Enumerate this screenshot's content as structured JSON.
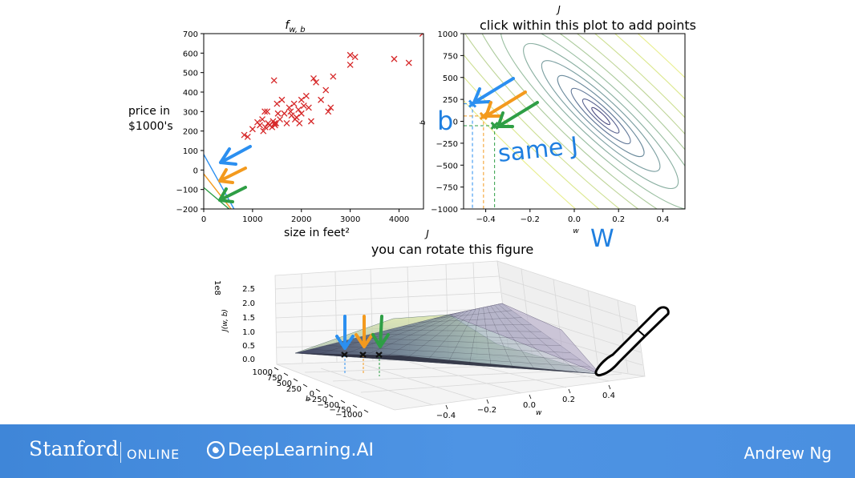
{
  "plot_scatter": {
    "title": "f",
    "title_sub": "w, b",
    "xlabel": "size in feet²",
    "ylabel_line1": "price in",
    "ylabel_line2": "$1000's",
    "xticks": [
      "0",
      "1000",
      "2000",
      "3000",
      "4000"
    ],
    "yticks": [
      "700",
      "600",
      "500",
      "400",
      "300",
      "200",
      "100",
      "0",
      "−100",
      "−200"
    ]
  },
  "plot_contour": {
    "title_j": "J",
    "title": "click within this plot to add points",
    "xlabel": "w",
    "ylabel": "b",
    "xticks": [
      "−0.4",
      "−0.2",
      "0.0",
      "0.2",
      "0.4"
    ],
    "yticks": [
      "1000",
      "750",
      "500",
      "250",
      "0",
      "−250",
      "−500",
      "−750",
      "−1000"
    ]
  },
  "plot_surface": {
    "title_j": "J",
    "title": "you can rotate this figure",
    "zlabel": "J(w, b)",
    "zscale": "1e8",
    "zticks": [
      "2.5",
      "2.0",
      "1.5",
      "1.0",
      "0.5",
      "0.0"
    ],
    "bticks": [
      "1000",
      "750",
      "500",
      "250",
      "0",
      "−250",
      "−500",
      "−750",
      "−1000"
    ],
    "blabel": "b",
    "wticks": [
      "−0.4",
      "−0.2",
      "0.0",
      "0.2",
      "0.4"
    ],
    "wlabel": "w"
  },
  "annotations": {
    "b_label": "b",
    "w_label": "W",
    "same_j": "same J"
  },
  "footer": {
    "stanford": "Stanford",
    "online": "ONLINE",
    "deeplearning": "DeepLearning.AI",
    "presenter": "Andrew Ng"
  },
  "colors": {
    "blue": "#2b8ff0",
    "orange": "#f39a1e",
    "green": "#2e9e45",
    "data_red": "#d62728",
    "handwriting": "#1f7fe0"
  },
  "chart_data": [
    {
      "type": "scatter",
      "title": "f w,b",
      "xlabel": "size in feet²",
      "ylabel": "price in $1000's",
      "xlim": [
        0,
        4500
      ],
      "ylim": [
        -200,
        700
      ],
      "series": [
        {
          "marker": "x",
          "x": [
            830,
            900,
            1000,
            1100,
            1150,
            1200,
            1220,
            1250,
            1260,
            1300,
            1320,
            1350,
            1400,
            1420,
            1440,
            1450,
            1460,
            1480,
            1500,
            1520,
            1560,
            1600,
            1650,
            1700,
            1750,
            1780,
            1800,
            1850,
            1870,
            1900,
            1940,
            1960,
            2000,
            2000,
            2050,
            2100,
            2150,
            2200,
            2250,
            2300,
            2400,
            2500,
            2550,
            2600,
            2650,
            3000,
            3000,
            3100,
            3900,
            4200,
            4480
          ],
          "y": [
            180,
            170,
            210,
            245,
            230,
            260,
            200,
            300,
            220,
            300,
            240,
            230,
            220,
            250,
            460,
            240,
            230,
            240,
            340,
            290,
            260,
            360,
            290,
            240,
            320,
            300,
            280,
            340,
            260,
            270,
            310,
            240,
            360,
            290,
            330,
            380,
            320,
            250,
            470,
            450,
            360,
            410,
            300,
            320,
            480,
            540,
            590,
            580,
            570,
            550,
            700
          ]
        }
      ],
      "lines": [
        {
          "color": "blue",
          "from": [
            0,
            80
          ],
          "to": [
            620,
            -200
          ]
        },
        {
          "color": "orange",
          "from": [
            0,
            -20
          ],
          "to": [
            560,
            -200
          ]
        },
        {
          "color": "green",
          "from": [
            0,
            -90
          ],
          "to": [
            520,
            -200
          ]
        }
      ]
    },
    {
      "type": "contour",
      "title": "J",
      "xlabel": "w",
      "ylabel": "b",
      "xlim": [
        -0.5,
        0.5
      ],
      "ylim": [
        -1000,
        1000
      ],
      "center": [
        0.12,
        60
      ],
      "points": [
        {
          "color": "blue",
          "w": -0.46,
          "b": 200
        },
        {
          "color": "orange",
          "w": -0.41,
          "b": 60
        },
        {
          "color": "green",
          "w": -0.36,
          "b": -50
        }
      ]
    },
    {
      "type": "surface",
      "title": "J",
      "zlabel": "J(w, b)",
      "zscale": "1e8",
      "zlim": [
        0,
        2.5
      ],
      "wlim": [
        -0.5,
        0.5
      ],
      "blim": [
        -1000,
        1000
      ]
    }
  ]
}
